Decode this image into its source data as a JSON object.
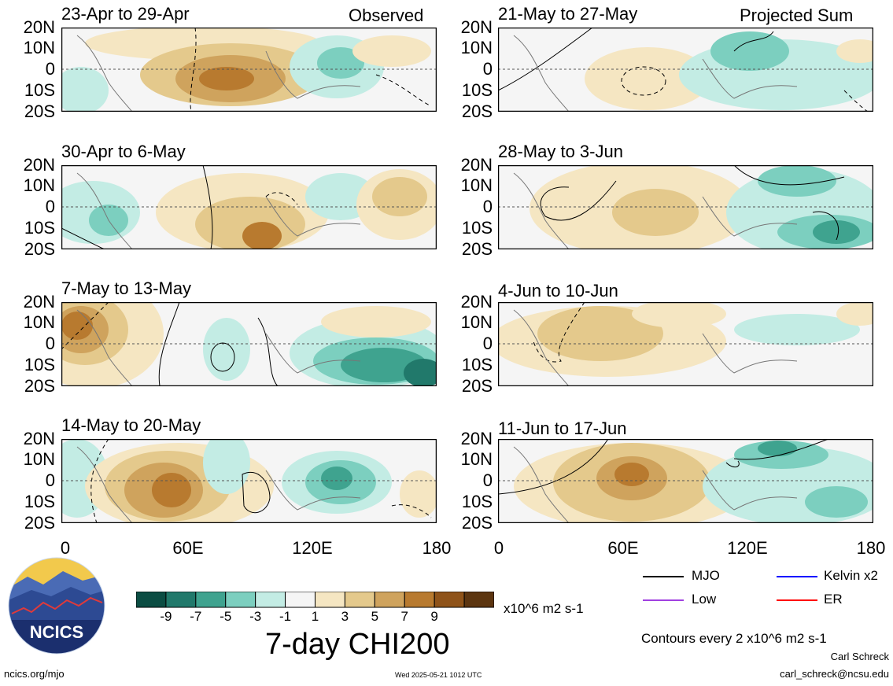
{
  "panels": [
    {
      "title": "23-Apr to 29-Apr",
      "corner": "Observed"
    },
    {
      "title": "30-Apr to 6-May",
      "corner": ""
    },
    {
      "title": "7-May to 13-May",
      "corner": ""
    },
    {
      "title": "14-May to 20-May",
      "corner": ""
    },
    {
      "title": "21-May to 27-May",
      "corner": "Projected Sum"
    },
    {
      "title": "28-May to 3-Jun",
      "corner": ""
    },
    {
      "title": "4-Jun to 10-Jun",
      "corner": ""
    },
    {
      "title": "11-Jun to 17-Jun",
      "corner": ""
    }
  ],
  "y_ticks": [
    "20N",
    "10N",
    "0",
    "10S",
    "20S"
  ],
  "x_ticks": [
    "0",
    "60E",
    "120E",
    "180"
  ],
  "colorbar": {
    "colors": [
      "#0b4d43",
      "#21796b",
      "#3fa38f",
      "#7ccfbf",
      "#c3ece4",
      "#f5f5f5",
      "#f5e6c2",
      "#e4c98c",
      "#cfa35d",
      "#b87a2f",
      "#8f5319",
      "#5c3510"
    ],
    "labels": [
      "-9",
      "-7",
      "-5",
      "-3",
      "-1",
      "1",
      "3",
      "5",
      "7",
      "9"
    ],
    "units": "x10^6 m2 s-1",
    "title": "7-day CHI200"
  },
  "legend": [
    {
      "label": "MJO",
      "color": "#000000"
    },
    {
      "label": "Kelvin x2",
      "color": "#0000ff"
    },
    {
      "label": "Low",
      "color": "#a040e0"
    },
    {
      "label": "ER",
      "color": "#ff0000"
    }
  ],
  "contours_note": "Contours every 2 x10^6 m2 s-1",
  "author": "Carl Schreck",
  "email": "carl_schreck@ncsu.edu",
  "site": "ncics.org/mjo",
  "timestamp": "Wed 2025-05-21 1012 UTC",
  "logo_text": "NCICS"
}
